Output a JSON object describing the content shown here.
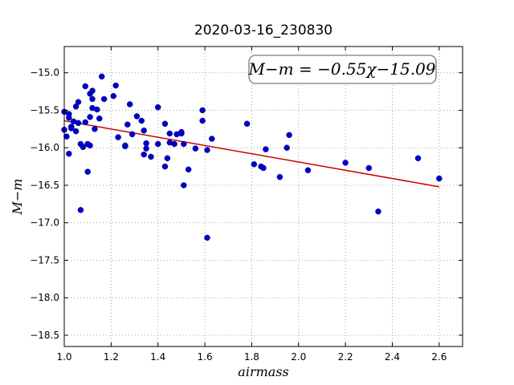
{
  "chart_data": {
    "type": "scatter",
    "title": "2020-03-16_230830",
    "xlabel": "airmass",
    "ylabel": "M−m",
    "xlim": [
      1.0,
      2.7
    ],
    "ylim": [
      -18.65,
      -14.65
    ],
    "y_inverted": true,
    "x_ticks": [
      1.0,
      1.2,
      1.4,
      1.6,
      1.8,
      2.0,
      2.2,
      2.4,
      2.6
    ],
    "x_tick_labels": [
      "1.0",
      "1.2",
      "1.4",
      "1.6",
      "1.8",
      "2.0",
      "2.2",
      "2.4",
      "2.6"
    ],
    "y_ticks": [
      -15.0,
      -15.5,
      -16.0,
      -16.5,
      -17.0,
      -17.5,
      -18.0,
      -18.5
    ],
    "y_tick_labels": [
      "−15.0",
      "−15.5",
      "−16.0",
      "−16.5",
      "−17.0",
      "−17.5",
      "−18.0",
      "−18.5"
    ],
    "grid": true,
    "marker_color": "#0000cc",
    "fit_color": "#cc0000",
    "annotation": "M−m = −0.55χ−15.09",
    "fit": {
      "slope": -0.55,
      "intercept": -15.09,
      "x_range": [
        1.0,
        2.6
      ]
    },
    "points": [
      [
        1.0,
        -15.52
      ],
      [
        1.0,
        -15.76
      ],
      [
        1.01,
        -15.85
      ],
      [
        1.02,
        -15.55
      ],
      [
        1.02,
        -15.6
      ],
      [
        1.02,
        -16.08
      ],
      [
        1.03,
        -15.72
      ],
      [
        1.03,
        -15.74
      ],
      [
        1.04,
        -15.65
      ],
      [
        1.05,
        -15.78
      ],
      [
        1.05,
        -15.45
      ],
      [
        1.06,
        -15.39
      ],
      [
        1.06,
        -15.67
      ],
      [
        1.07,
        -15.95
      ],
      [
        1.07,
        -16.83
      ],
      [
        1.08,
        -15.99
      ],
      [
        1.09,
        -15.66
      ],
      [
        1.09,
        -15.18
      ],
      [
        1.1,
        -16.32
      ],
      [
        1.1,
        -15.95
      ],
      [
        1.11,
        -15.97
      ],
      [
        1.11,
        -15.59
      ],
      [
        1.11,
        -15.28
      ],
      [
        1.12,
        -15.47
      ],
      [
        1.12,
        -15.24
      ],
      [
        1.12,
        -15.35
      ],
      [
        1.13,
        -15.75
      ],
      [
        1.14,
        -15.49
      ],
      [
        1.15,
        -15.61
      ],
      [
        1.16,
        -15.05
      ],
      [
        1.17,
        -15.35
      ],
      [
        1.21,
        -15.31
      ],
      [
        1.22,
        -15.17
      ],
      [
        1.23,
        -15.86
      ],
      [
        1.26,
        -15.98
      ],
      [
        1.26,
        -15.97
      ],
      [
        1.27,
        -15.69
      ],
      [
        1.28,
        -15.42
      ],
      [
        1.29,
        -15.82
      ],
      [
        1.31,
        -15.58
      ],
      [
        1.33,
        -15.64
      ],
      [
        1.34,
        -16.09
      ],
      [
        1.34,
        -15.77
      ],
      [
        1.35,
        -15.94
      ],
      [
        1.35,
        -16.01
      ],
      [
        1.37,
        -16.12
      ],
      [
        1.4,
        -15.46
      ],
      [
        1.4,
        -15.95
      ],
      [
        1.43,
        -15.68
      ],
      [
        1.43,
        -16.25
      ],
      [
        1.44,
        -16.14
      ],
      [
        1.45,
        -15.81
      ],
      [
        1.45,
        -15.93
      ],
      [
        1.47,
        -15.95
      ],
      [
        1.48,
        -15.82
      ],
      [
        1.5,
        -15.81
      ],
      [
        1.5,
        -15.79
      ],
      [
        1.51,
        -15.95
      ],
      [
        1.51,
        -16.5
      ],
      [
        1.53,
        -16.29
      ],
      [
        1.56,
        -16.01
      ],
      [
        1.59,
        -15.5
      ],
      [
        1.59,
        -15.64
      ],
      [
        1.61,
        -16.03
      ],
      [
        1.61,
        -17.2
      ],
      [
        1.63,
        -15.88
      ],
      [
        1.78,
        -15.68
      ],
      [
        1.81,
        -16.22
      ],
      [
        1.84,
        -16.25
      ],
      [
        1.85,
        -16.27
      ],
      [
        1.86,
        -16.02
      ],
      [
        1.92,
        -16.39
      ],
      [
        1.95,
        -16.0
      ],
      [
        1.96,
        -15.83
      ],
      [
        2.04,
        -16.3
      ],
      [
        2.2,
        -16.2
      ],
      [
        2.3,
        -16.27
      ],
      [
        2.34,
        -16.85
      ],
      [
        2.51,
        -16.14
      ],
      [
        2.6,
        -16.41
      ]
    ]
  }
}
